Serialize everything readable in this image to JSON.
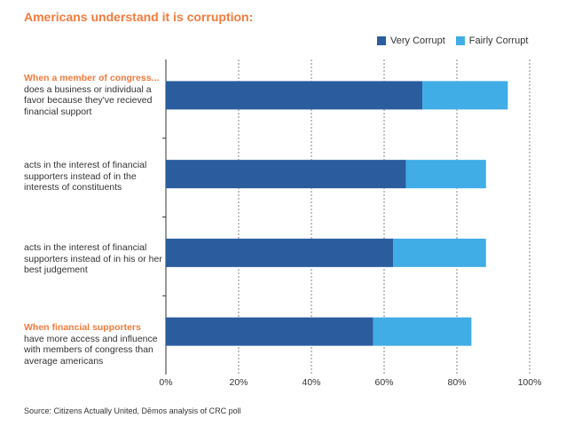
{
  "title": "Americans understand it is corruption:",
  "source": "Source: Citizens Actually United, Dēmos analysis of CRC poll",
  "colors": {
    "very": "#2b5d9e",
    "fairly": "#40ade6",
    "accent": "#f47b3c",
    "grid": "#666666"
  },
  "chart_data": {
    "type": "bar",
    "orientation": "horizontal",
    "stacked": true,
    "categories": [
      {
        "highlight": "When a member of congress...",
        "text": "does a business or individual a favor because they've recieved financial support"
      },
      {
        "highlight": "",
        "text": "acts in the interest of financial supporters instead of in the interests of constituents"
      },
      {
        "highlight": "",
        "text": "acts in the interest of financial supporters instead of in his or her best judgement"
      },
      {
        "highlight": "When financial supporters",
        "text": "have more access and influence with members of congress than average americans"
      }
    ],
    "series": [
      {
        "name": "Very Corrupt",
        "values": [
          70.5,
          66,
          62.5,
          57
        ]
      },
      {
        "name": "Fairly Corrupt",
        "values": [
          23.5,
          22,
          25.5,
          27
        ]
      }
    ],
    "xlim": [
      0,
      100
    ],
    "x_ticks": [
      "0%",
      "20%",
      "40%",
      "60%",
      "80%",
      "100%"
    ],
    "grid": true,
    "legend_position": "top-right"
  }
}
